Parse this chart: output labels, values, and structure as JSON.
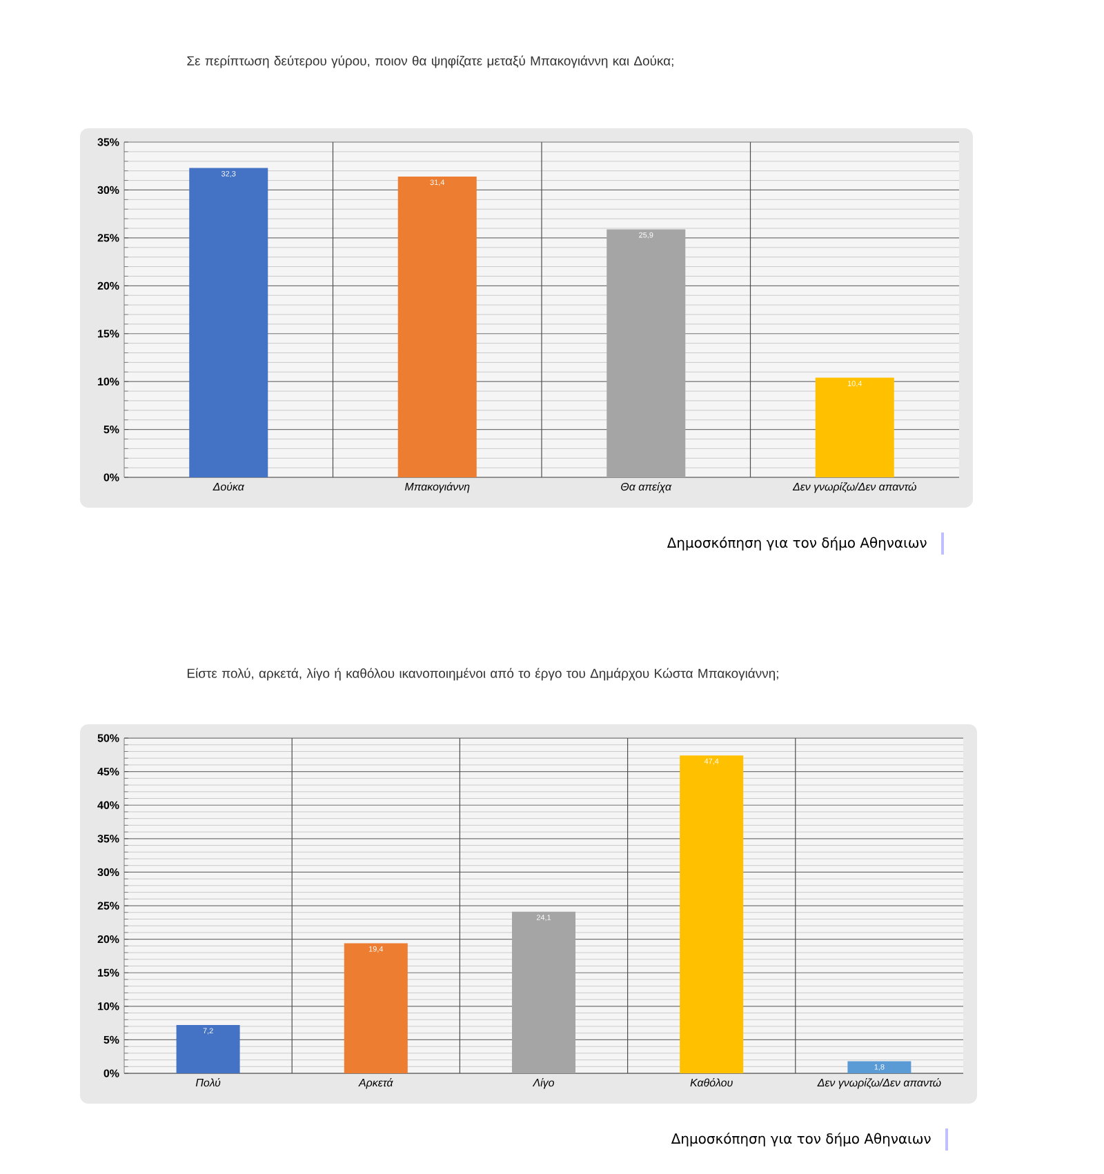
{
  "chart_data": [
    {
      "type": "bar",
      "title": "Σε περίπτωση δεύτερου γύρου, ποιον θα ψηφίζατε μεταξύ Μπακογιάννη και Δούκα;",
      "categories": [
        "Δούκα",
        "Μπακογιάννη",
        "Θα απείχα",
        "Δεν γνωρίζω/Δεν απαντώ"
      ],
      "values": [
        32.3,
        31.4,
        25.9,
        10.4
      ],
      "colors": [
        "#4472c4",
        "#ed7d31",
        "#a5a5a5",
        "#ffc000"
      ],
      "value_labels": [
        "32,3",
        "31,4",
        "25,9",
        "10,4"
      ],
      "ylim": [
        0,
        35
      ],
      "yticks": [
        {
          "value": 0,
          "label": "0%"
        },
        {
          "value": 5,
          "label": "5%"
        },
        {
          "value": 10,
          "label": "10%"
        },
        {
          "value": 15,
          "label": "15%"
        },
        {
          "value": 20,
          "label": "20%"
        },
        {
          "value": 25,
          "label": "25%"
        },
        {
          "value": 30,
          "label": "30%"
        },
        {
          "value": 35,
          "label": "35%"
        }
      ],
      "grid": true,
      "annotations": [
        "Δημοσκόπηση για τον δήμο Αθηναιων"
      ]
    },
    {
      "type": "bar",
      "title": "Είστε πολύ, αρκετά, λίγο ή καθόλου ικανοποιημένοι από το έργο του Δημάρχου Κώστα Μπακογιάννη;",
      "categories": [
        "Πολύ",
        "Αρκετά",
        "Λίγο",
        "Καθόλου",
        "Δεν γνωρίζω/Δεν απαντώ"
      ],
      "values": [
        7.2,
        19.4,
        24.1,
        47.4,
        1.8
      ],
      "colors": [
        "#4472c4",
        "#ed7d31",
        "#a5a5a5",
        "#ffc000",
        "#5b9bd5"
      ],
      "value_labels": [
        "7,2",
        "19,4",
        "24,1",
        "47,4",
        "1,8"
      ],
      "ylim": [
        0,
        50
      ],
      "yticks": [
        {
          "value": 0,
          "label": "0%"
        },
        {
          "value": 5,
          "label": "5%"
        },
        {
          "value": 10,
          "label": "10%"
        },
        {
          "value": 15,
          "label": "15%"
        },
        {
          "value": 20,
          "label": "20%"
        },
        {
          "value": 25,
          "label": "25%"
        },
        {
          "value": 30,
          "label": "30%"
        },
        {
          "value": 35,
          "label": "35%"
        },
        {
          "value": 40,
          "label": "40%"
        },
        {
          "value": 45,
          "label": "45%"
        },
        {
          "value": 50,
          "label": "50%"
        }
      ],
      "grid": true,
      "annotations": [
        "Δημοσκόπηση για τον δήμο Αθηναιων"
      ]
    }
  ]
}
